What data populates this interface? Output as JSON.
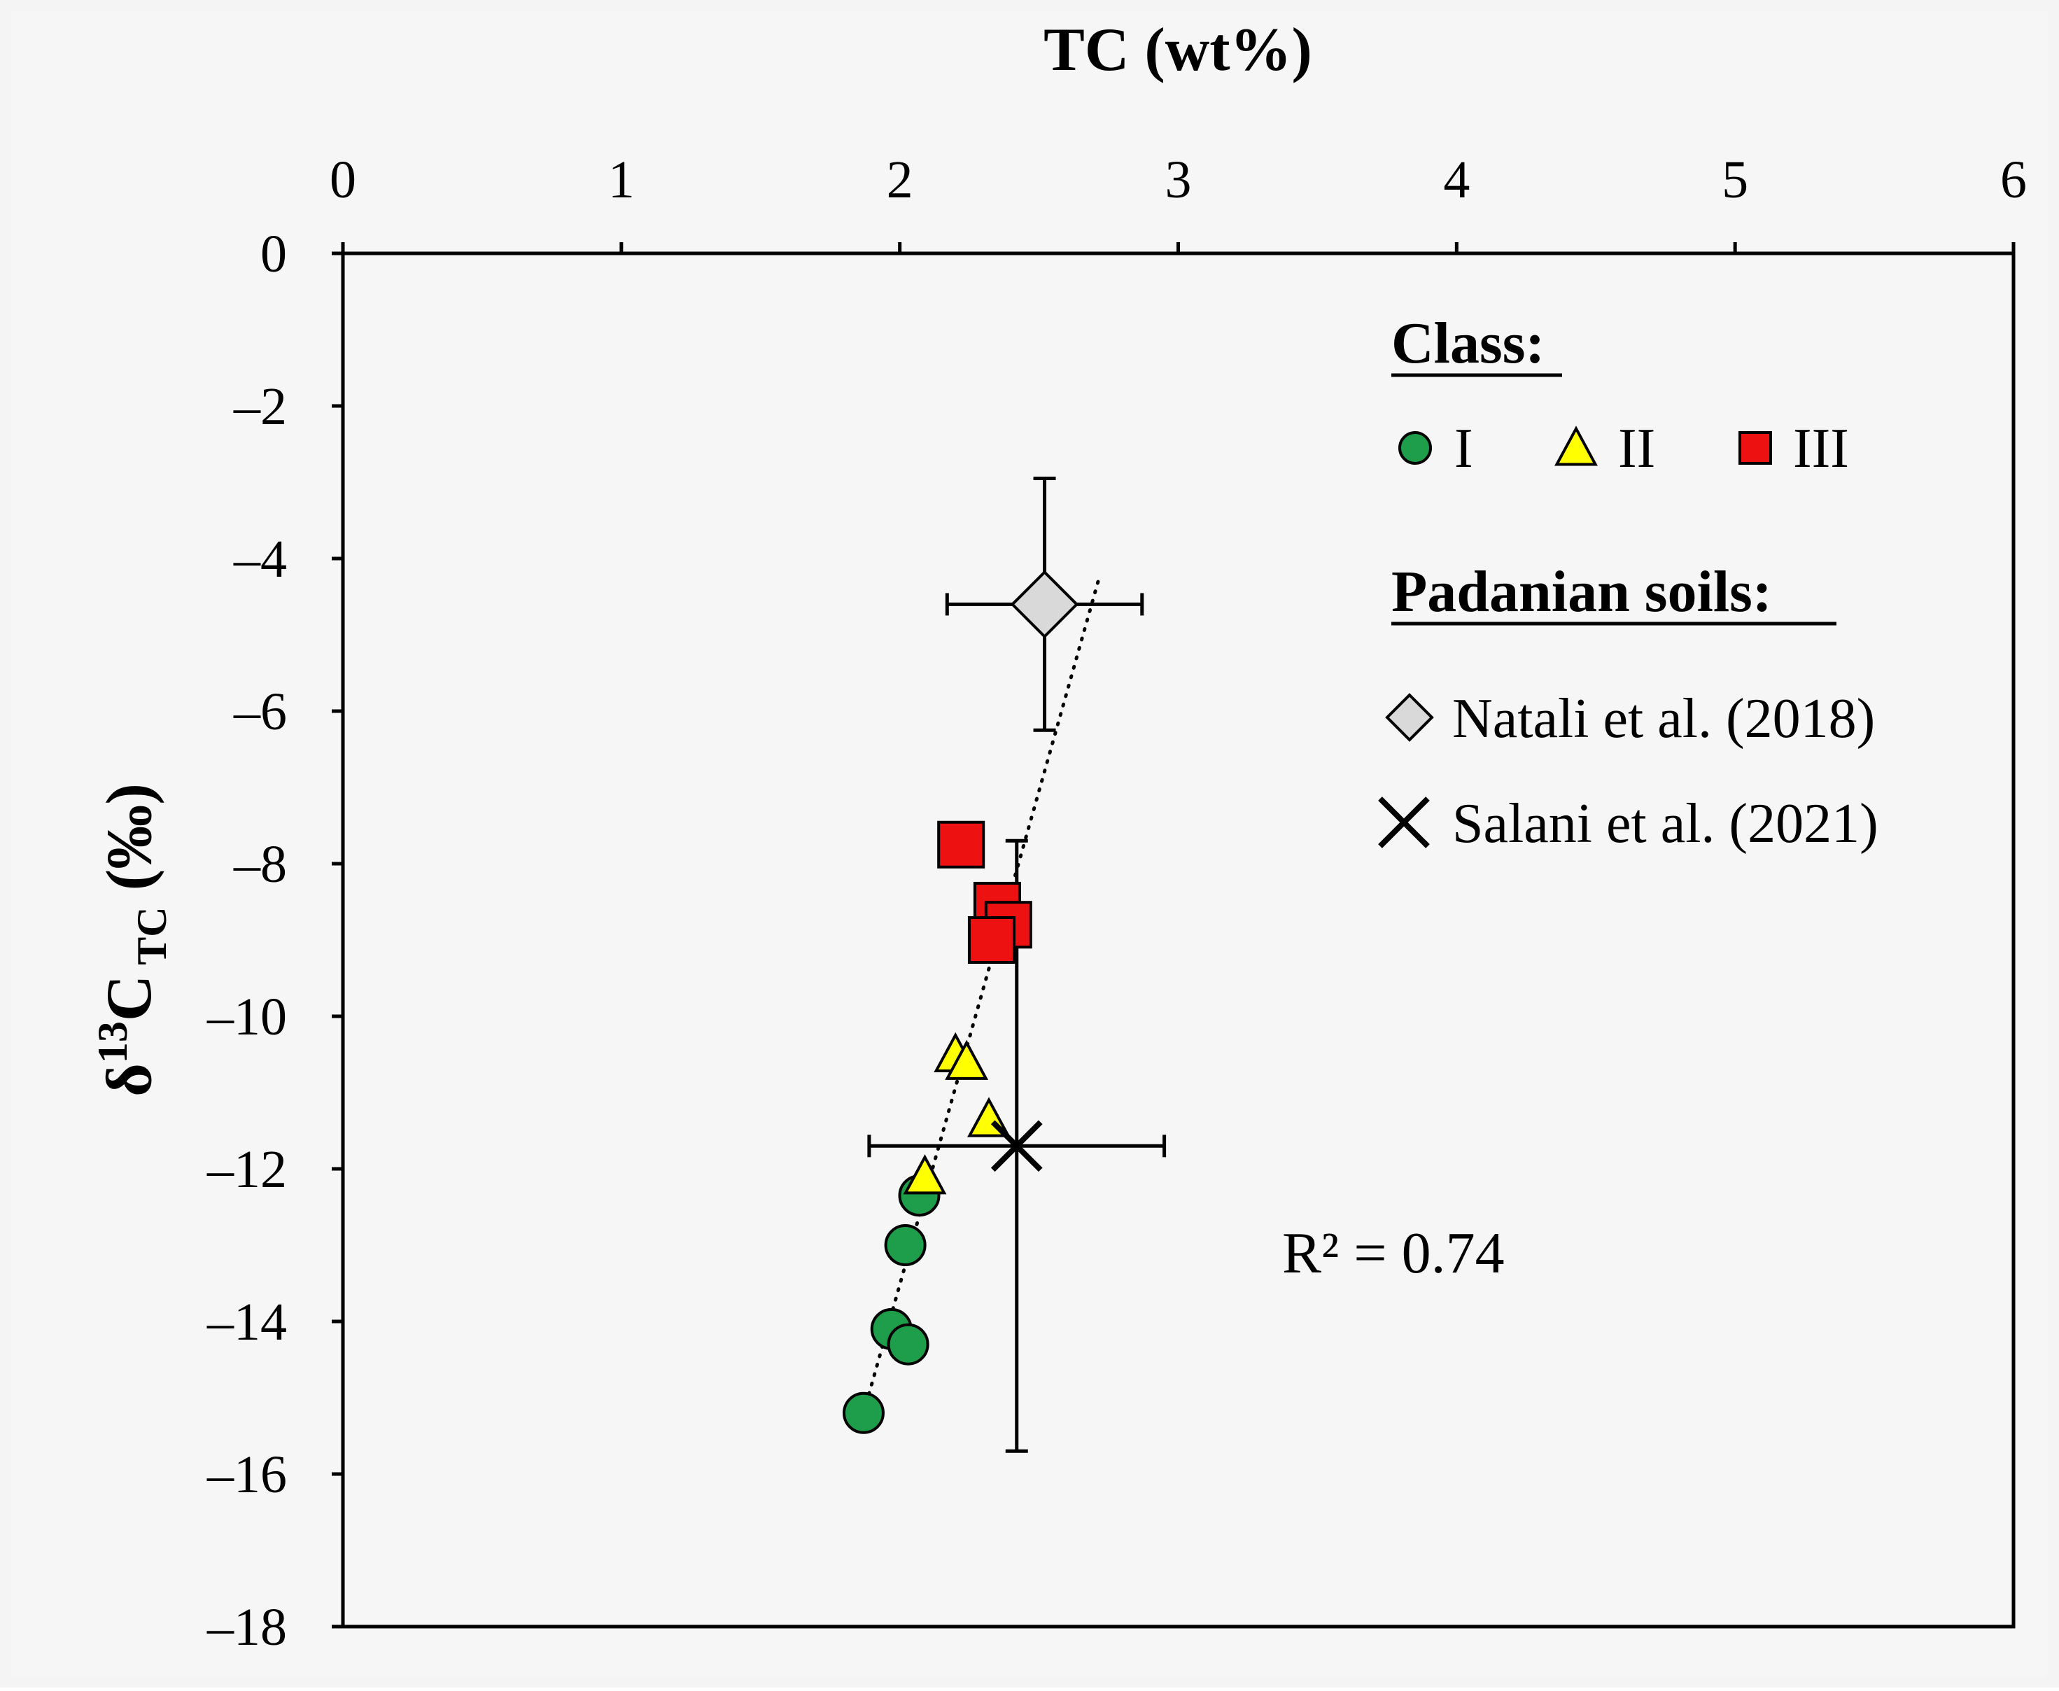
{
  "chart_data": {
    "type": "scatter",
    "xlabel": "TC (wt%)",
    "ylabel": {
      "main": "δ",
      "sup": "13",
      "c": "C",
      "sub": " TC",
      "unit": " (‰)"
    },
    "xlim": [
      0,
      6
    ],
    "ylim": [
      -18,
      0
    ],
    "x_ticks": [
      "0",
      "1",
      "2",
      "3",
      "4",
      "5",
      "6"
    ],
    "y_ticks": [
      "0",
      "–2",
      "–4",
      "–6",
      "–8",
      "–10",
      "–12",
      "–14",
      "–16",
      "–18"
    ],
    "x_axis_position": "top",
    "grid": false,
    "legend": {
      "placement": "top-right",
      "class_title": "Class:",
      "soils_title": "Padanian soils:",
      "items": [
        {
          "label": "I",
          "marker": "circle",
          "color": "#1e9e4a"
        },
        {
          "label": "II",
          "marker": "triangle",
          "color": "#ffff00"
        },
        {
          "label": "III",
          "marker": "square",
          "color": "#ee1111"
        },
        {
          "label": "Natali et al. (2018)",
          "marker": "diamond",
          "color": "#d9d9d9"
        },
        {
          "label": "Salani et al. (2021)",
          "marker": "x",
          "color": "#000000"
        }
      ]
    },
    "series": [
      {
        "name": "I",
        "marker": "circle",
        "color": "#1e9e4a",
        "x": [
          1.87,
          1.97,
          2.03,
          2.02,
          2.07
        ],
        "y": [
          -15.2,
          -14.1,
          -14.3,
          -13.0,
          -12.35
        ]
      },
      {
        "name": "II",
        "marker": "triangle",
        "color": "#ffff00",
        "x": [
          2.09,
          2.2,
          2.24,
          2.32
        ],
        "y": [
          -12.1,
          -10.5,
          -10.6,
          -11.35
        ]
      },
      {
        "name": "III",
        "marker": "square",
        "color": "#ee1111",
        "x": [
          2.22,
          2.35,
          2.39,
          2.33
        ],
        "y": [
          -7.75,
          -8.55,
          -8.8,
          -9.0
        ]
      },
      {
        "name": "Natali et al. (2018)",
        "marker": "diamond",
        "color": "#d9d9d9",
        "x": [
          2.52
        ],
        "y": [
          -4.6
        ],
        "x_err": [
          0.35
        ],
        "y_err": [
          1.65
        ]
      },
      {
        "name": "Salani et al. (2021)",
        "marker": "x",
        "color": "#000000",
        "x": [
          2.42
        ],
        "y": [
          -11.7
        ],
        "x_err": [
          0.53
        ],
        "y_err": [
          4.0
        ]
      }
    ],
    "trendline": {
      "style": "dotted",
      "x": [
        1.87,
        2.72
      ],
      "y": [
        -15.2,
        -4.2
      ]
    },
    "annotation": "R² = 0.74"
  }
}
